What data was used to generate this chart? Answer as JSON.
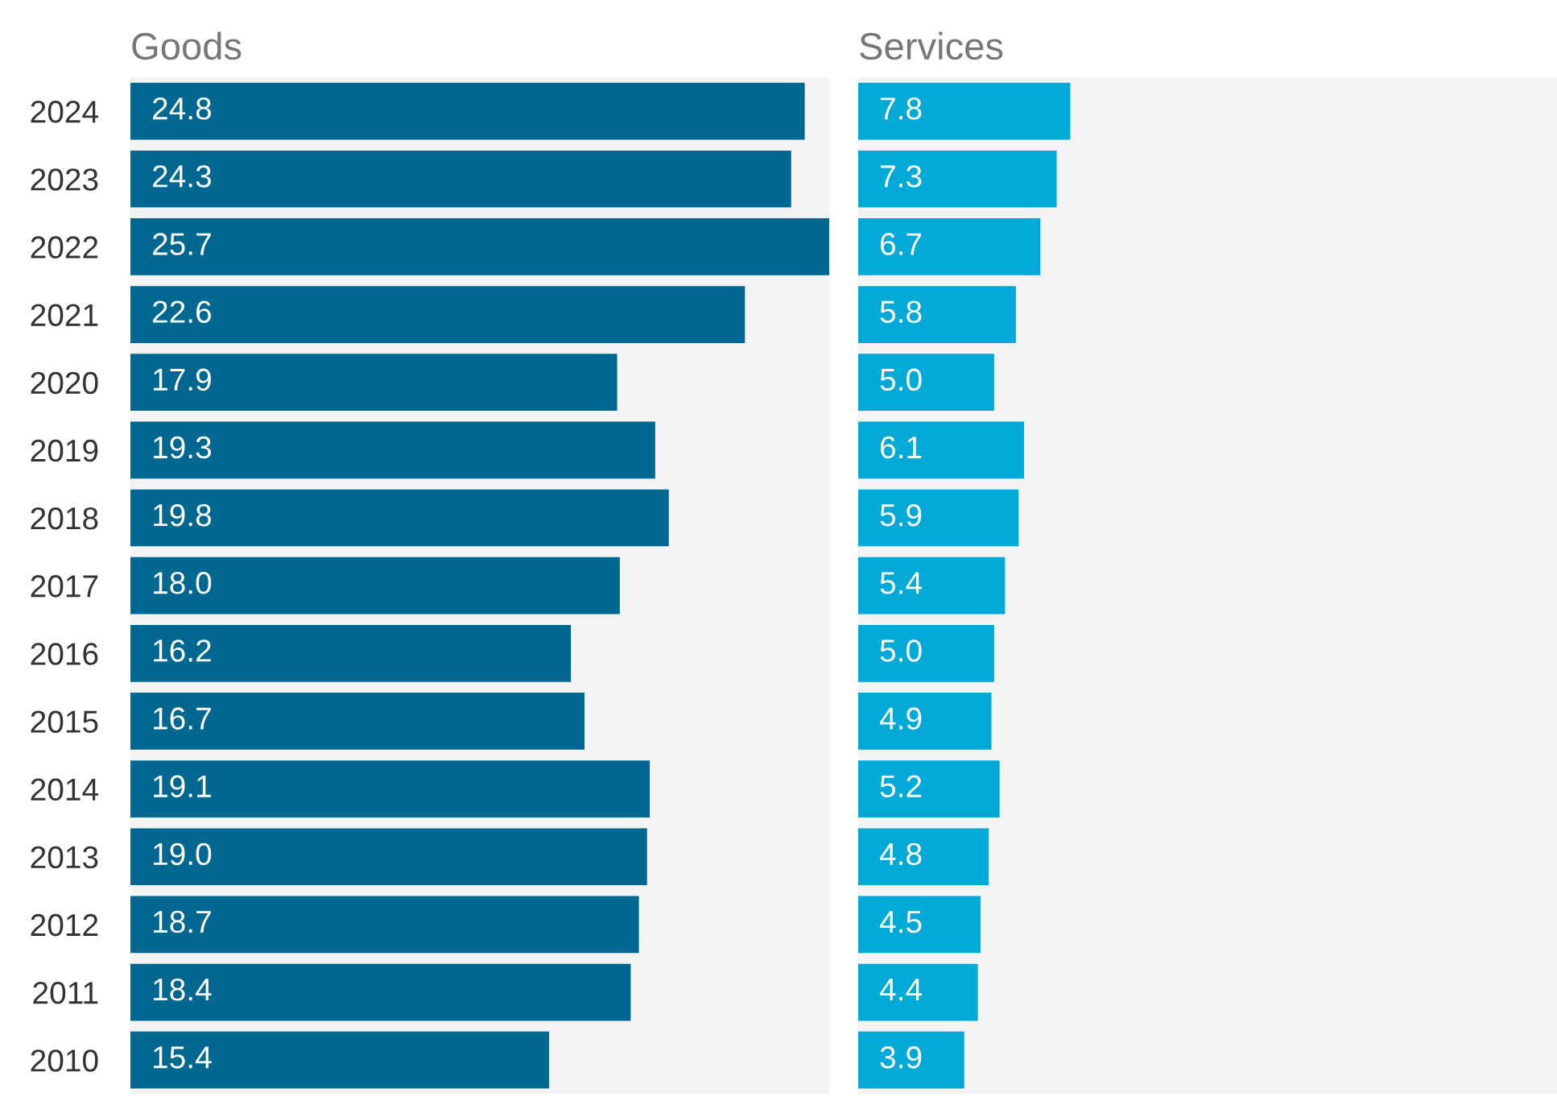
{
  "chart_data": [
    {
      "type": "bar",
      "orientation": "horizontal",
      "title": "Goods",
      "categories": [
        "2024",
        "2023",
        "2022",
        "2021",
        "2020",
        "2019",
        "2018",
        "2017",
        "2016",
        "2015",
        "2014",
        "2013",
        "2012",
        "2011",
        "2010"
      ],
      "values": [
        24.8,
        24.3,
        25.7,
        22.6,
        17.9,
        19.3,
        19.8,
        18.0,
        16.2,
        16.7,
        19.1,
        19.0,
        18.7,
        18.4,
        15.4
      ],
      "value_labels": [
        "24.8",
        "24.3",
        "25.7",
        "22.6",
        "17.9",
        "19.3",
        "19.8",
        "18.0",
        "16.2",
        "16.7",
        "19.1",
        "19.0",
        "18.7",
        "18.4",
        "15.4"
      ],
      "color": "#006890",
      "xlim": [
        0,
        25.7
      ],
      "tick_labels": "y",
      "grid": false,
      "legend": false
    },
    {
      "type": "bar",
      "orientation": "horizontal",
      "title": "Services",
      "categories": [
        "2024",
        "2023",
        "2022",
        "2021",
        "2020",
        "2019",
        "2018",
        "2017",
        "2016",
        "2015",
        "2014",
        "2013",
        "2012",
        "2011",
        "2010"
      ],
      "values": [
        7.8,
        7.3,
        6.7,
        5.8,
        5.0,
        6.1,
        5.9,
        5.4,
        5.0,
        4.9,
        5.2,
        4.8,
        4.5,
        4.4,
        3.9
      ],
      "value_labels": [
        "7.8",
        "7.3",
        "6.7",
        "5.8",
        "5.0",
        "6.1",
        "5.9",
        "5.4",
        "5.0",
        "4.9",
        "5.2",
        "4.8",
        "4.5",
        "4.4",
        "3.9"
      ],
      "color": "#00a9d6",
      "xlim": [
        0,
        25.7
      ],
      "tick_labels": false,
      "grid": false,
      "legend": false
    }
  ]
}
